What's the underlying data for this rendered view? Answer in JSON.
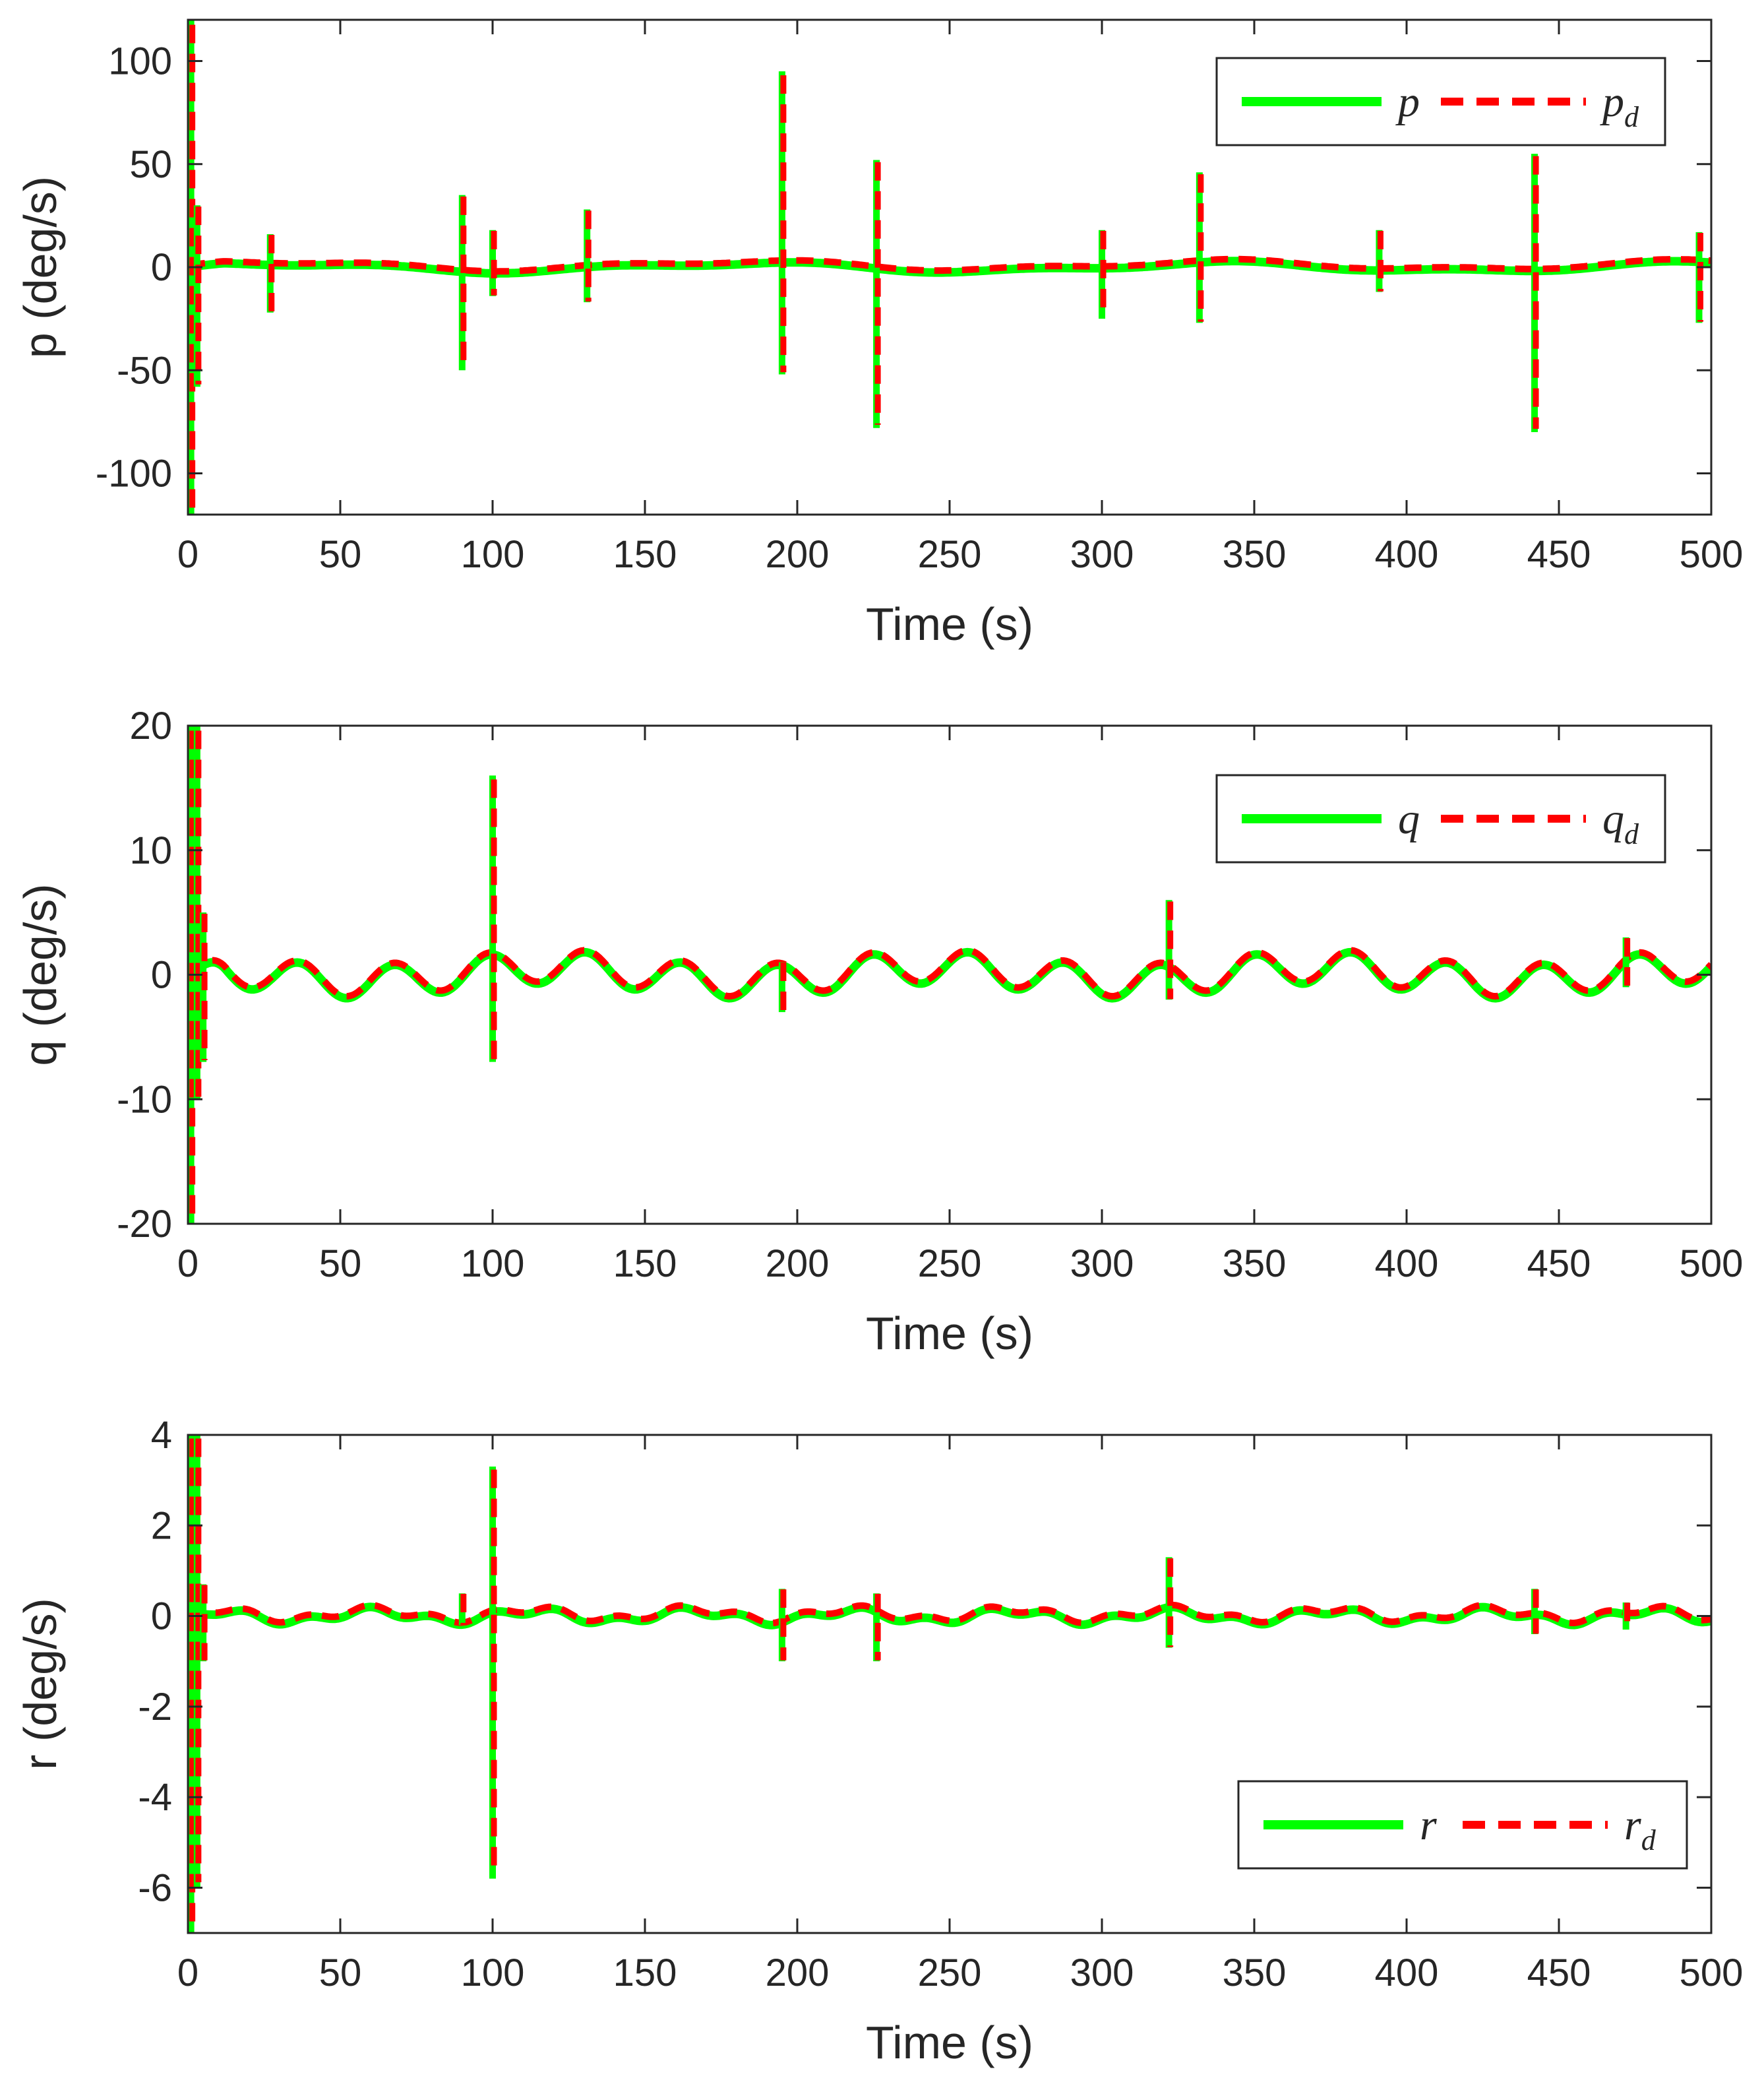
{
  "colors": {
    "measured": "#00ff00",
    "desired": "#ff0000",
    "axes": "#262626",
    "background": "#ffffff"
  },
  "chart_data": [
    {
      "type": "line",
      "xlabel": "Time (s)",
      "ylabel": "p (deg/s)",
      "xlim": [
        0,
        500
      ],
      "ylim": [
        -120,
        120
      ],
      "xticks": [
        0,
        50,
        100,
        150,
        200,
        250,
        300,
        350,
        400,
        450,
        500
      ],
      "yticks": [
        -100,
        -50,
        0,
        50,
        100
      ],
      "legend": {
        "location": "top-right",
        "entries": [
          {
            "symbol": "p",
            "sub": ""
          },
          {
            "symbol": "p",
            "sub": "d"
          }
        ]
      },
      "baseline": {
        "amplitude": 2,
        "freq": 0.04,
        "amplitude2": 1,
        "freq2": 0.09
      },
      "spikes": [
        {
          "t": 1,
          "max": 120,
          "min": -120
        },
        {
          "t": 3,
          "max": 30,
          "min": -58
        },
        {
          "t": 27,
          "max": 16,
          "min": -22
        },
        {
          "t": 90,
          "max": 35,
          "min": -50
        },
        {
          "t": 100,
          "max": 18,
          "min": -14
        },
        {
          "t": 131,
          "max": 28,
          "min": -17
        },
        {
          "t": 195,
          "max": 95,
          "min": -52
        },
        {
          "t": 226,
          "max": 52,
          "min": -78
        },
        {
          "t": 300,
          "max": 18,
          "min": -25
        },
        {
          "t": 332,
          "max": 46,
          "min": -27
        },
        {
          "t": 391,
          "max": 18,
          "min": -12
        },
        {
          "t": 442,
          "max": 55,
          "min": -80
        },
        {
          "t": 496,
          "max": 17,
          "min": -27
        }
      ],
      "series": [
        {
          "name": "p",
          "style": "solid"
        },
        {
          "name": "p_d",
          "style": "dashed"
        }
      ]
    },
    {
      "type": "line",
      "xlabel": "Time (s)",
      "ylabel": "q (deg/s)",
      "xlim": [
        0,
        500
      ],
      "ylim": [
        -20,
        20
      ],
      "xticks": [
        0,
        50,
        100,
        150,
        200,
        250,
        300,
        350,
        400,
        450,
        500
      ],
      "yticks": [
        -20,
        -10,
        0,
        10,
        20
      ],
      "legend": {
        "location": "top-right",
        "entries": [
          {
            "symbol": "q",
            "sub": ""
          },
          {
            "symbol": "q",
            "sub": "d"
          }
        ]
      },
      "baseline": {
        "amplitude": 1.3,
        "freq": 0.2,
        "amplitude2": 0.6,
        "freq2": 0.05
      },
      "spikes": [
        {
          "t": 1,
          "max": 20,
          "min": -20
        },
        {
          "t": 3,
          "max": 20,
          "min": -10
        },
        {
          "t": 5,
          "max": 5,
          "min": -7
        },
        {
          "t": 100,
          "max": 16,
          "min": -7
        },
        {
          "t": 195,
          "max": 1,
          "min": -3
        },
        {
          "t": 322,
          "max": 6,
          "min": -2
        },
        {
          "t": 472,
          "max": 3,
          "min": -1
        }
      ],
      "series": [
        {
          "name": "q",
          "style": "solid"
        },
        {
          "name": "q_d",
          "style": "dashed"
        }
      ]
    },
    {
      "type": "line",
      "xlabel": "Time (s)",
      "ylabel": "r (deg/s)",
      "xlim": [
        0,
        500
      ],
      "ylim": [
        -7,
        4
      ],
      "xticks": [
        0,
        50,
        100,
        150,
        200,
        250,
        300,
        350,
        400,
        450,
        500
      ],
      "yticks": [
        -6,
        -4,
        -2,
        0,
        2,
        4
      ],
      "legend": {
        "location": "bottom-right",
        "entries": [
          {
            "symbol": "r",
            "sub": ""
          },
          {
            "symbol": "r",
            "sub": "d"
          }
        ]
      },
      "baseline": {
        "amplitude": 0.12,
        "freq": 0.12,
        "amplitude2": 0.08,
        "freq2": 0.31
      },
      "spikes": [
        {
          "t": 1,
          "max": 4,
          "min": -7
        },
        {
          "t": 3,
          "max": 4,
          "min": -6
        },
        {
          "t": 5,
          "max": 0.7,
          "min": -1
        },
        {
          "t": 90,
          "max": 0.5,
          "min": -0.2
        },
        {
          "t": 100,
          "max": 3.3,
          "min": -5.8
        },
        {
          "t": 195,
          "max": 0.6,
          "min": -1
        },
        {
          "t": 226,
          "max": 0.5,
          "min": -1
        },
        {
          "t": 322,
          "max": 1.3,
          "min": -0.7
        },
        {
          "t": 442,
          "max": 0.6,
          "min": -0.4
        },
        {
          "t": 472,
          "max": 0.3,
          "min": -0.3
        }
      ],
      "series": [
        {
          "name": "r",
          "style": "solid"
        },
        {
          "name": "r_d",
          "style": "dashed"
        }
      ]
    }
  ]
}
